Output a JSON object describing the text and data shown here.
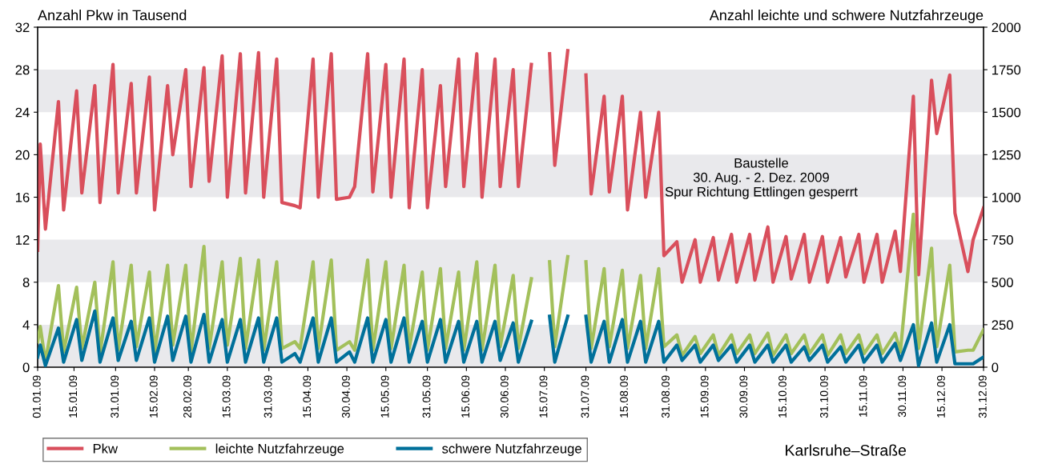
{
  "chart_data": {
    "type": "line",
    "ylabel": "Anzahl Pkw in Tausend",
    "y2label": "Anzahl leichte und schwere Nutzfahrzeuge",
    "annotations": [
      "Baustelle\n30. Aug. - 2. Dez. 2009\nSpur Richtung Ettlingen gesperrt",
      "Karlsruhe–Straße"
    ],
    "x": [
      "2009-01-01",
      "2009-01-02",
      "2009-01-04",
      "2009-01-09",
      "2009-01-11",
      "2009-01-16",
      "2009-01-18",
      "2009-01-23",
      "2009-01-25",
      "2009-01-30",
      "2009-02-01",
      "2009-02-06",
      "2009-02-08",
      "2009-02-13",
      "2009-02-15",
      "2009-02-20",
      "2009-02-22",
      "2009-02-27",
      "2009-03-01",
      "2009-03-06",
      "2009-03-08",
      "2009-03-13",
      "2009-03-15",
      "2009-03-20",
      "2009-03-22",
      "2009-03-27",
      "2009-03-29",
      "2009-04-03",
      "2009-04-05",
      "2009-04-10",
      "2009-04-12",
      "2009-04-17",
      "2009-04-19",
      "2009-04-24",
      "2009-04-26",
      "2009-05-01",
      "2009-05-03",
      "2009-05-08",
      "2009-05-10",
      "2009-05-15",
      "2009-05-17",
      "2009-05-22",
      "2009-05-24",
      "2009-05-29",
      "2009-05-31",
      "2009-06-05",
      "2009-06-07",
      "2009-06-12",
      "2009-06-14",
      "2009-06-19",
      "2009-06-21",
      "2009-06-26",
      "2009-06-28",
      "2009-07-03",
      "2009-07-05",
      "2009-07-10",
      "2009-07-12",
      "2009-07-17",
      "2009-07-19",
      "2009-07-24",
      "2009-07-26",
      "2009-07-31",
      "2009-08-02",
      "2009-08-07",
      "2009-08-09",
      "2009-08-14",
      "2009-08-16",
      "2009-08-21",
      "2009-08-23",
      "2009-08-28",
      "2009-08-30",
      "2009-09-04",
      "2009-09-06",
      "2009-09-11",
      "2009-09-13",
      "2009-09-18",
      "2009-09-20",
      "2009-09-25",
      "2009-09-27",
      "2009-10-02",
      "2009-10-04",
      "2009-10-09",
      "2009-10-11",
      "2009-10-16",
      "2009-10-18",
      "2009-10-23",
      "2009-10-25",
      "2009-10-30",
      "2009-11-01",
      "2009-11-06",
      "2009-11-08",
      "2009-11-13",
      "2009-11-15",
      "2009-11-20",
      "2009-11-22",
      "2009-11-27",
      "2009-11-29",
      "2009-12-04",
      "2009-12-06",
      "2009-12-11",
      "2009-12-13",
      "2009-12-18",
      "2009-12-20",
      "2009-12-25",
      "2009-12-27",
      "2009-12-31"
    ],
    "series": [
      {
        "name": "Pkw",
        "color": "#d94f5c",
        "values": [
          11,
          21,
          13,
          25,
          14.8,
          26,
          16.4,
          26.5,
          15.5,
          28.5,
          16.4,
          26.7,
          16.4,
          27.3,
          14.8,
          26.5,
          20,
          28,
          17,
          28.2,
          17.5,
          29.3,
          16,
          29.5,
          16.4,
          29.6,
          16,
          29,
          15.5,
          15.2,
          15,
          29,
          16,
          29.5,
          15.8,
          16,
          17,
          29.5,
          16.5,
          28.5,
          16,
          29,
          15,
          28,
          15,
          26.5,
          17,
          29,
          17,
          29.5,
          16,
          29,
          17,
          28,
          17,
          28.5,
          null,
          29.5,
          19,
          29.8,
          null,
          27.5,
          16.3,
          25.5,
          16.5,
          25.5,
          14.8,
          24,
          16,
          24,
          10.5,
          11.8,
          8,
          12,
          8,
          12.2,
          8.2,
          12.5,
          8,
          12.5,
          8.2,
          13.2,
          8,
          12.3,
          8.3,
          12.5,
          8,
          12.3,
          8,
          12.2,
          8.5,
          12.5,
          8,
          12.5,
          8,
          12.8,
          9,
          25.5,
          8.7,
          27,
          22,
          27.5,
          14.5,
          9,
          12,
          15
        ]
      },
      {
        "name": "leichte Nutzfahrzeuge",
        "color": "#a3c05b",
        "axis": "y2",
        "values": [
          150,
          240,
          30,
          480,
          90,
          470,
          110,
          500,
          80,
          620,
          100,
          600,
          120,
          560,
          90,
          600,
          130,
          600,
          90,
          710,
          110,
          620,
          130,
          640,
          110,
          630,
          100,
          620,
          110,
          150,
          110,
          620,
          110,
          630,
          100,
          150,
          100,
          630,
          100,
          620,
          110,
          600,
          110,
          560,
          100,
          580,
          110,
          560,
          100,
          620,
          100,
          600,
          120,
          540,
          110,
          520,
          null,
          620,
          120,
          650,
          null,
          620,
          110,
          580,
          120,
          570,
          110,
          540,
          110,
          580,
          120,
          190,
          70,
          180,
          80,
          190,
          70,
          190,
          80,
          190,
          80,
          200,
          70,
          190,
          80,
          190,
          80,
          190,
          70,
          190,
          80,
          190,
          80,
          190,
          80,
          200,
          90,
          900,
          110,
          700,
          120,
          600,
          90,
          100,
          100,
          220
        ]
      },
      {
        "name": "schwere Nutzfahrzeuge",
        "color": "#00709a",
        "axis": "y2",
        "values": [
          60,
          130,
          10,
          230,
          30,
          280,
          40,
          330,
          30,
          290,
          40,
          270,
          40,
          290,
          30,
          300,
          40,
          300,
          30,
          310,
          30,
          280,
          30,
          280,
          30,
          290,
          30,
          290,
          30,
          80,
          30,
          290,
          30,
          290,
          30,
          90,
          30,
          290,
          30,
          280,
          30,
          290,
          30,
          270,
          30,
          280,
          30,
          270,
          30,
          270,
          30,
          270,
          40,
          260,
          30,
          270,
          null,
          300,
          30,
          300,
          null,
          300,
          30,
          270,
          30,
          280,
          30,
          270,
          30,
          270,
          30,
          130,
          40,
          130,
          30,
          130,
          40,
          130,
          30,
          130,
          30,
          130,
          30,
          130,
          30,
          120,
          40,
          130,
          30,
          120,
          30,
          130,
          30,
          130,
          30,
          140,
          40,
          250,
          10,
          260,
          30,
          250,
          20,
          20,
          20,
          60
        ]
      }
    ],
    "xlim": [
      "2009-01-01",
      "2009-12-31"
    ],
    "xticks": [
      {
        "value": "2009-01-01",
        "label": "01.01.09"
      },
      {
        "value": "2009-01-15",
        "label": "15.01.09"
      },
      {
        "value": "2009-01-31",
        "label": "31.01.09"
      },
      {
        "value": "2009-02-15",
        "label": "15.02.09"
      },
      {
        "value": "2009-02-28",
        "label": "28.02.09"
      },
      {
        "value": "2009-03-15",
        "label": "15.03.09"
      },
      {
        "value": "2009-03-31",
        "label": "31.03.09"
      },
      {
        "value": "2009-04-15",
        "label": "15.04.09"
      },
      {
        "value": "2009-04-30",
        "label": "30.04.09"
      },
      {
        "value": "2009-05-15",
        "label": "15.05.09"
      },
      {
        "value": "2009-05-31",
        "label": "31.05.09"
      },
      {
        "value": "2009-06-15",
        "label": "15.06.09"
      },
      {
        "value": "2009-06-30",
        "label": "30.06.09"
      },
      {
        "value": "2009-07-15",
        "label": "15.07.09"
      },
      {
        "value": "2009-07-31",
        "label": "31.07.09"
      },
      {
        "value": "2009-08-15",
        "label": "15.08.09"
      },
      {
        "value": "2009-08-31",
        "label": "31.08.09"
      },
      {
        "value": "2009-09-15",
        "label": "15.09.09"
      },
      {
        "value": "2009-09-30",
        "label": "30.09.09"
      },
      {
        "value": "2009-10-15",
        "label": "15.10.09"
      },
      {
        "value": "2009-10-31",
        "label": "31.10.09"
      },
      {
        "value": "2009-11-15",
        "label": "15.11.09"
      },
      {
        "value": "2009-11-30",
        "label": "30.11.09"
      },
      {
        "value": "2009-12-15",
        "label": "15.12.09"
      },
      {
        "value": "2009-12-31",
        "label": "31.12.09"
      }
    ],
    "ylim": [
      0,
      32
    ],
    "yticks": [
      0,
      4,
      8,
      12,
      16,
      20,
      24,
      28,
      32
    ],
    "y2lim": [
      0,
      2000
    ],
    "y2ticks": [
      0,
      250,
      500,
      750,
      1000,
      1250,
      1500,
      1750,
      2000
    ],
    "bands": [
      {
        "axis": "y",
        "from": 0,
        "to": 4,
        "color": "#e9e9ec"
      },
      {
        "axis": "y",
        "from": 8,
        "to": 12,
        "color": "#e9e9ec"
      },
      {
        "axis": "y",
        "from": 16,
        "to": 20,
        "color": "#e9e9ec"
      },
      {
        "axis": "y",
        "from": 24,
        "to": 28,
        "color": "#e9e9ec"
      }
    ],
    "grid": false,
    "legend": "bottom"
  }
}
